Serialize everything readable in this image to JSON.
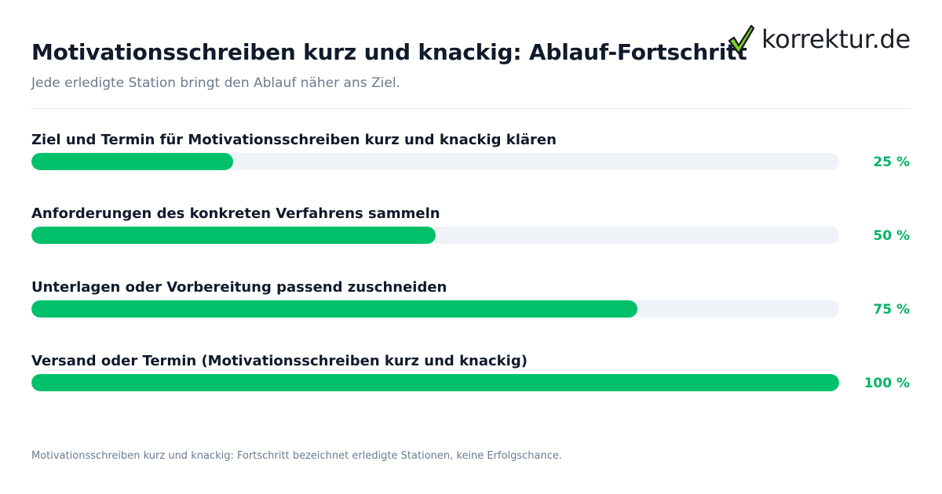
{
  "header": {
    "title": "Motivationsschreiben kurz und knackig: Ablauf-Fortschritt",
    "subtitle": "Jede erledigte Station bringt den Ablauf näher ans Ziel."
  },
  "logo": {
    "text": "korrektur.de",
    "icon": "checkmark-icon",
    "colors": {
      "check_fill": "#7ed321",
      "check_outline": "#1b1f27"
    }
  },
  "chart_data": {
    "type": "bar",
    "orientation": "horizontal",
    "categories": [
      "Ziel und Termin für Motivationsschreiben kurz und knackig klären",
      "Anforderungen des konkreten Verfahrens sammeln",
      "Unterlagen oder Vorbereitung passend zuschneiden",
      "Versand oder Termin (Motivationsschreiben kurz und knackig)"
    ],
    "values": [
      25,
      50,
      75,
      100
    ],
    "value_labels": [
      "25 %",
      "50 %",
      "75 %",
      "100 %"
    ],
    "xlim": [
      0,
      100
    ],
    "grid": false,
    "colors": {
      "bar": "#00c16a",
      "track": "#eff3f7",
      "value_label": "#00b463"
    }
  },
  "footnote": "Motivationsschreiben kurz und knackig: Fortschritt bezeichnet erledigte Stationen, keine Erfolgschance."
}
